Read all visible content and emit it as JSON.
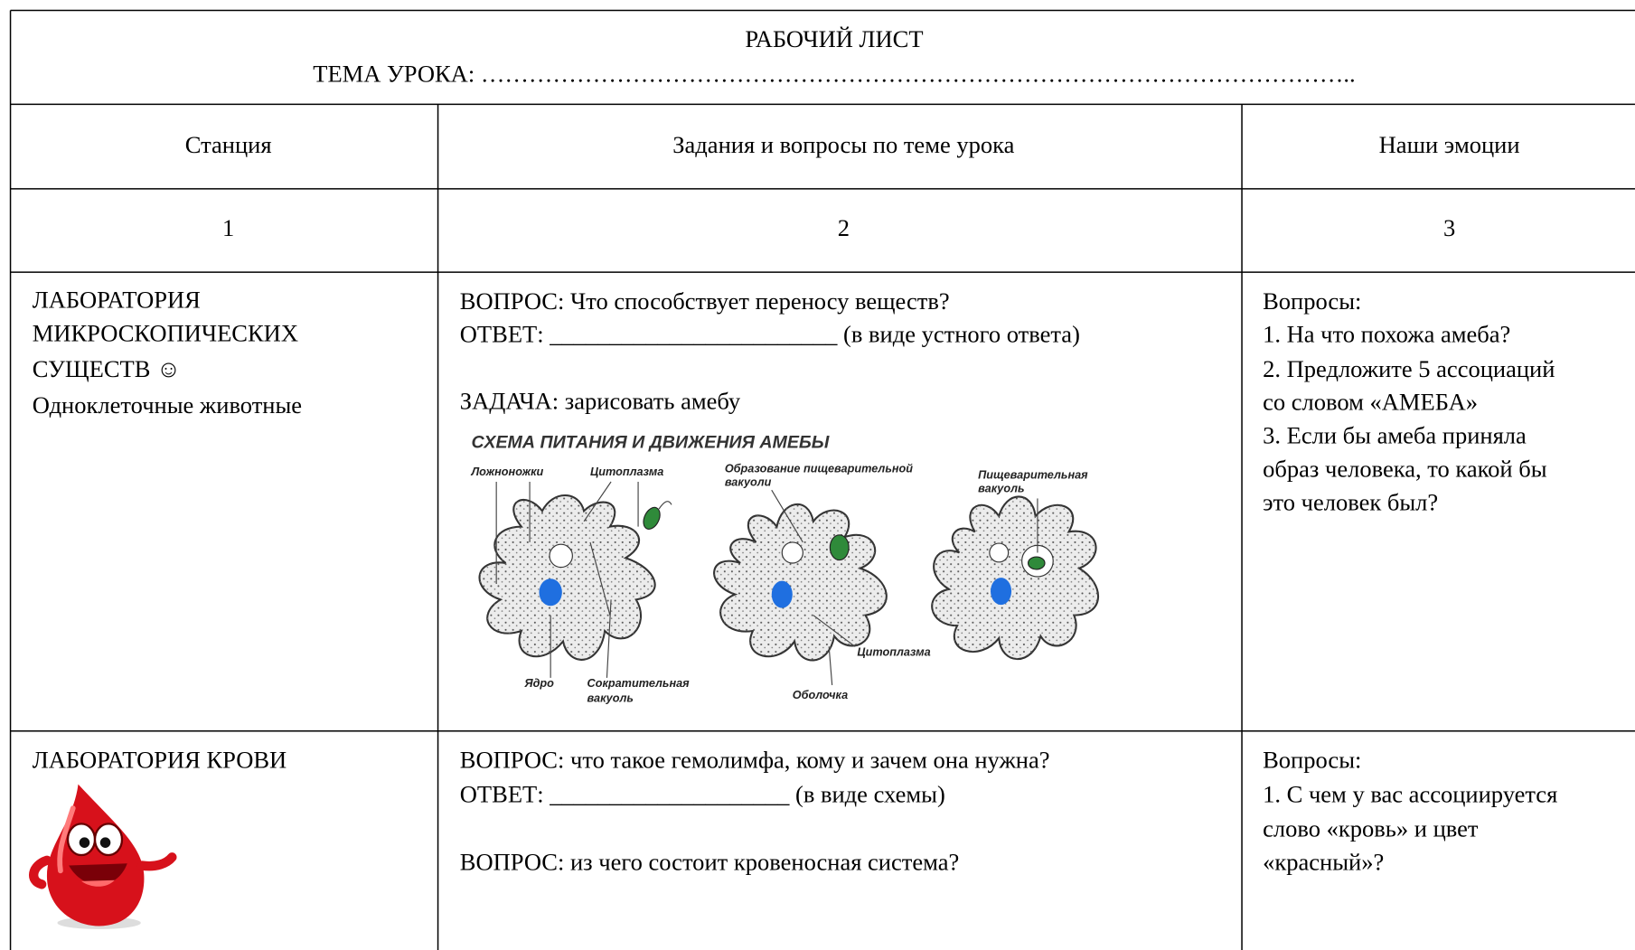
{
  "header": {
    "title": "РАБОЧИЙ ЛИСТ",
    "topic": "ТЕМА УРОКА: ……………………………………………………………………………………………….."
  },
  "table": {
    "columns": [
      "Станция",
      "Задания и вопросы по теме урока",
      "Наши эмоции"
    ],
    "numbers": [
      1,
      2,
      3
    ],
    "rows": [
      {
        "station": [
          "ЛАБОРАТОРИЯ",
          "МИКРОСКОПИЧЕСКИХ",
          "СУЩЕСТВ ☺",
          "Одноклеточные животные"
        ],
        "tasks": [
          "ВОПРОС: Что способствует переносу веществ?",
          "ОТВЕТ: ________________________ (в виде устного ответа)",
          "ЗАДАЧА: зарисовать амебу"
        ],
        "emotions": [
          "Вопросы:",
          "1.   На что похожа амеба?",
          "2.   Предложите 5 ассоциаций",
          "со словом «АМЕБА»",
          "3.  Если  бы  амеба  приняла",
          "образ  человека,  то  какой  бы",
          "это человек был?"
        ]
      },
      {
        "station": [
          "ЛАБОРАТОРИЯ КРОВИ"
        ],
        "tasks": [
          "ВОПРОС: что такое гемолимфа, кому и зачем она нужна?",
          "ОТВЕТ: ____________________ (в виде схемы)",
          "ВОПРОС: из чего состоит кровеносная система?"
        ],
        "emotions": [
          "Вопросы:",
          "1.   С чем у вас ассоциируется",
          "слово      «кровь»      и      цвет",
          "«красный»?"
        ]
      }
    ]
  },
  "diagram": {
    "title": "СХЕМА ПИТАНИЯ И ДВИЖЕНИЯ АМЕБЫ",
    "labels": [
      "Ложноножки",
      "Цитоплазма",
      "Образование пищеварительной",
      "вакуоли",
      "Пищеварительная",
      "вакуоль",
      "Ядро",
      "Сократительная",
      "вакуоль",
      "Оболочка",
      "Цитоплазма"
    ]
  }
}
